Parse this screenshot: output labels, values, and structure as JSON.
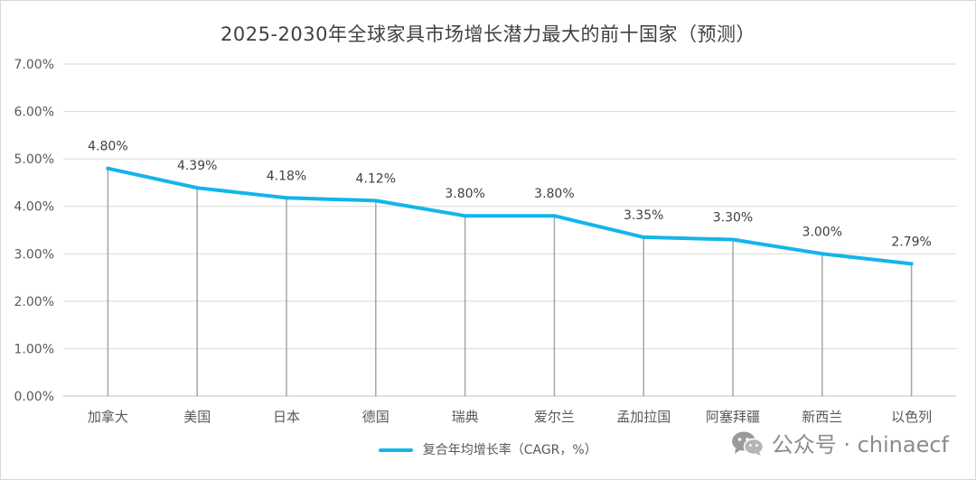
{
  "chart_data": {
    "type": "line",
    "title": "2025-2030年全球家具市场增长潜力最大的前十国家（预测）",
    "categories": [
      "加拿大",
      "美国",
      "日本",
      "德国",
      "瑞典",
      "爱尔兰",
      "孟加拉国",
      "阿塞拜疆",
      "新西兰",
      "以色列"
    ],
    "series": [
      {
        "name": "复合年均增长率（CAGR，%）",
        "values": [
          4.8,
          4.39,
          4.18,
          4.12,
          3.8,
          3.8,
          3.35,
          3.3,
          3.0,
          2.79
        ],
        "labels": [
          "4.80%",
          "4.39%",
          "4.18%",
          "4.12%",
          "3.80%",
          "3.80%",
          "3.35%",
          "3.30%",
          "3.00%",
          "2.79%"
        ]
      }
    ],
    "yticks": [
      "0.00%",
      "1.00%",
      "2.00%",
      "3.00%",
      "4.00%",
      "5.00%",
      "6.00%",
      "7.00%"
    ],
    "ylim": [
      0,
      7
    ],
    "grid": true,
    "legend_position": "bottom",
    "colors": {
      "line": "#13b5ea",
      "drop_lines": "#a6a6a6",
      "grid": "#d9d9d9"
    }
  },
  "watermark": {
    "icon": "wechat-icon",
    "text": "公众号 · chinaecf"
  }
}
